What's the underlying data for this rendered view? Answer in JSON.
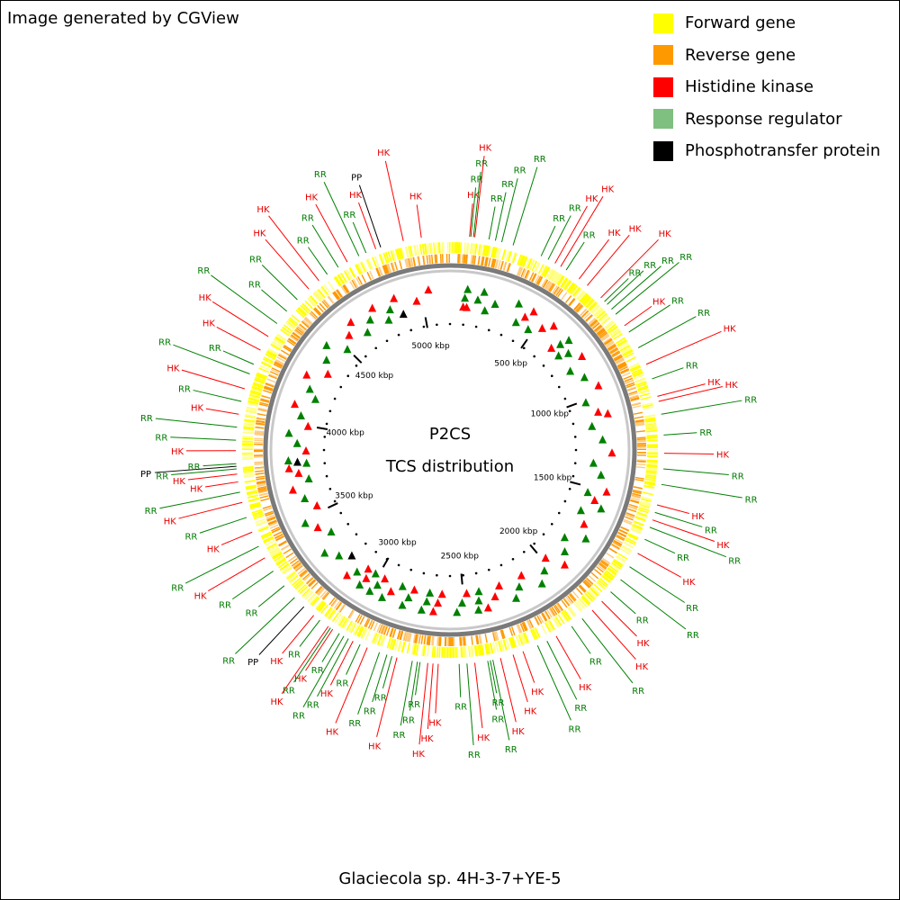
{
  "header": {
    "credit": "Image generated by CGView"
  },
  "legend": [
    {
      "label": "Forward gene",
      "color": "#ffff00"
    },
    {
      "label": "Reverse gene",
      "color": "#ff9900"
    },
    {
      "label": "Histidine kinase",
      "color": "#ff0000"
    },
    {
      "label": "Response regulator",
      "color": "#7fbf7f"
    },
    {
      "label": "Phosphotransfer protein",
      "color": "#000000"
    }
  ],
  "map": {
    "title_line1": "P2CS",
    "title_line2": "TCS distribution",
    "caption": "Glaciecola sp. 4H-3-7+YE-5",
    "ruler_labels": [
      "500 kbp",
      "1000 kbp",
      "1500 kbp",
      "2000 kbp",
      "2500 kbp",
      "3000 kbp",
      "3500 kbp",
      "4000 kbp",
      "4500 kbp",
      "5000 kbp"
    ],
    "tick_positions_kbp": [
      500,
      1000,
      1500,
      2000,
      2500,
      3000,
      3500,
      4000,
      4500,
      5000
    ],
    "genome_length_kbp": 5150,
    "feature_types": {
      "HK": {
        "color": "#ff0000",
        "label_color": "#e60000"
      },
      "RR": {
        "color": "#008000",
        "label_color": "#007a00"
      },
      "PP": {
        "color": "#000000",
        "label_color": "#000000"
      }
    },
    "features": [
      {
        "kbp": 75,
        "type": "HK",
        "label": "HK"
      },
      {
        "kbp": 80,
        "type": "RR",
        "label": "RR"
      },
      {
        "kbp": 90,
        "type": "RR",
        "label": "RR"
      },
      {
        "kbp": 95,
        "type": "HK",
        "label": "HK"
      },
      {
        "kbp": 150,
        "type": "RR",
        "label": "RR"
      },
      {
        "kbp": 175,
        "type": "RR",
        "label": "RR"
      },
      {
        "kbp": 200,
        "type": "RR",
        "label": "RR"
      },
      {
        "kbp": 245,
        "type": "RR",
        "label": "RR"
      },
      {
        "kbp": 360,
        "type": "RR",
        "label": "RR"
      },
      {
        "kbp": 390,
        "type": "RR",
        "label": "RR"
      },
      {
        "kbp": 420,
        "type": "HK",
        "label": "HK"
      },
      {
        "kbp": 445,
        "type": "HK",
        "label": "HK"
      },
      {
        "kbp": 470,
        "type": "RR",
        "label": "RR"
      },
      {
        "kbp": 530,
        "type": "HK",
        "label": "HK"
      },
      {
        "kbp": 570,
        "type": "HK",
        "label": "HK"
      },
      {
        "kbp": 640,
        "type": "HK",
        "label": "HK"
      },
      {
        "kbp": 660,
        "type": "RR",
        "label": "RR"
      },
      {
        "kbp": 675,
        "type": "RR",
        "label": "RR"
      },
      {
        "kbp": 700,
        "type": "RR",
        "label": "RR"
      },
      {
        "kbp": 725,
        "type": "RR",
        "label": "RR"
      },
      {
        "kbp": 780,
        "type": "HK",
        "label": "HK"
      },
      {
        "kbp": 810,
        "type": "RR",
        "label": "RR"
      },
      {
        "kbp": 880,
        "type": "RR",
        "label": "RR"
      },
      {
        "kbp": 950,
        "type": "HK",
        "label": "HK"
      },
      {
        "kbp": 1010,
        "type": "RR",
        "label": "RR"
      },
      {
        "kbp": 1080,
        "type": "HK",
        "label": "HK"
      },
      {
        "kbp": 1100,
        "type": "HK",
        "label": "HK"
      },
      {
        "kbp": 1150,
        "type": "RR",
        "label": "RR"
      },
      {
        "kbp": 1230,
        "type": "RR",
        "label": "RR"
      },
      {
        "kbp": 1300,
        "type": "HK",
        "label": "HK"
      },
      {
        "kbp": 1360,
        "type": "RR",
        "label": "RR"
      },
      {
        "kbp": 1420,
        "type": "RR",
        "label": "RR"
      },
      {
        "kbp": 1500,
        "type": "HK",
        "label": "HK"
      },
      {
        "kbp": 1530,
        "type": "RR",
        "label": "RR"
      },
      {
        "kbp": 1560,
        "type": "HK",
        "label": "HK"
      },
      {
        "kbp": 1590,
        "type": "RR",
        "label": "RR"
      },
      {
        "kbp": 1640,
        "type": "RR",
        "label": "RR"
      },
      {
        "kbp": 1700,
        "type": "HK",
        "label": "HK"
      },
      {
        "kbp": 1760,
        "type": "RR",
        "label": "RR"
      },
      {
        "kbp": 1820,
        "type": "RR",
        "label": "RR"
      },
      {
        "kbp": 1880,
        "type": "RR",
        "label": "RR"
      },
      {
        "kbp": 1930,
        "type": "HK",
        "label": "HK"
      },
      {
        "kbp": 1980,
        "type": "HK",
        "label": "HK"
      },
      {
        "kbp": 2030,
        "type": "RR",
        "label": "RR"
      },
      {
        "kbp": 2080,
        "type": "RR",
        "label": "RR"
      },
      {
        "kbp": 2150,
        "type": "HK",
        "label": "HK"
      },
      {
        "kbp": 2190,
        "type": "RR",
        "label": "RR"
      },
      {
        "kbp": 2230,
        "type": "RR",
        "label": "RR"
      },
      {
        "kbp": 2290,
        "type": "HK",
        "label": "HK"
      },
      {
        "kbp": 2330,
        "type": "HK",
        "label": "HK"
      },
      {
        "kbp": 2380,
        "type": "HK",
        "label": "HK"
      },
      {
        "kbp": 2410,
        "type": "RR",
        "label": "RR"
      },
      {
        "kbp": 2420,
        "type": "RR",
        "label": "RR"
      },
      {
        "kbp": 2430,
        "type": "RR",
        "label": "RR"
      },
      {
        "kbp": 2480,
        "type": "HK",
        "label": "HK"
      },
      {
        "kbp": 2510,
        "type": "RR",
        "label": "RR"
      },
      {
        "kbp": 2540,
        "type": "RR",
        "label": "RR"
      },
      {
        "kbp": 2620,
        "type": "HK",
        "label": "HK"
      },
      {
        "kbp": 2640,
        "type": "HK",
        "label": "HK"
      },
      {
        "kbp": 2660,
        "type": "HK",
        "label": "HK"
      },
      {
        "kbp": 2690,
        "type": "RR",
        "label": "RR"
      },
      {
        "kbp": 2700,
        "type": "RR",
        "label": "RR"
      },
      {
        "kbp": 2720,
        "type": "RR",
        "label": "RR"
      },
      {
        "kbp": 2780,
        "type": "HK",
        "label": "HK"
      },
      {
        "kbp": 2800,
        "type": "RR",
        "label": "RR"
      },
      {
        "kbp": 2820,
        "type": "RR",
        "label": "RR"
      },
      {
        "kbp": 2850,
        "type": "RR",
        "label": "RR"
      },
      {
        "kbp": 2900,
        "type": "HK",
        "label": "HK"
      },
      {
        "kbp": 2930,
        "type": "RR",
        "label": "RR"
      },
      {
        "kbp": 2960,
        "type": "HK",
        "label": "HK"
      },
      {
        "kbp": 2980,
        "type": "RR",
        "label": "RR"
      },
      {
        "kbp": 3000,
        "type": "RR",
        "label": "RR"
      },
      {
        "kbp": 3020,
        "type": "RR",
        "label": "RR"
      },
      {
        "kbp": 3050,
        "type": "HK",
        "label": "HK"
      },
      {
        "kbp": 3060,
        "type": "RR",
        "label": "RR"
      },
      {
        "kbp": 3070,
        "type": "HK",
        "label": "HK"
      },
      {
        "kbp": 3110,
        "type": "RR",
        "label": "RR"
      },
      {
        "kbp": 3140,
        "type": "HK",
        "label": "HK"
      },
      {
        "kbp": 3190,
        "type": "PP",
        "label": "PP"
      },
      {
        "kbp": 3240,
        "type": "RR",
        "label": "RR"
      },
      {
        "kbp": 3300,
        "type": "RR",
        "label": "RR"
      },
      {
        "kbp": 3370,
        "type": "RR",
        "label": "RR"
      },
      {
        "kbp": 3430,
        "type": "HK",
        "label": "HK"
      },
      {
        "kbp": 3480,
        "type": "RR",
        "label": "RR"
      },
      {
        "kbp": 3540,
        "type": "HK",
        "label": "HK"
      },
      {
        "kbp": 3600,
        "type": "RR",
        "label": "RR"
      },
      {
        "kbp": 3660,
        "type": "HK",
        "label": "HK"
      },
      {
        "kbp": 3700,
        "type": "RR",
        "label": "RR"
      },
      {
        "kbp": 3740,
        "type": "HK",
        "label": "HK"
      },
      {
        "kbp": 3770,
        "type": "HK",
        "label": "HK"
      },
      {
        "kbp": 3790,
        "type": "RR",
        "label": "RR"
      },
      {
        "kbp": 3800,
        "type": "PP",
        "label": "PP"
      },
      {
        "kbp": 3810,
        "type": "RR",
        "label": "RR"
      },
      {
        "kbp": 3860,
        "type": "HK",
        "label": "HK"
      },
      {
        "kbp": 3900,
        "type": "RR",
        "label": "RR"
      },
      {
        "kbp": 3950,
        "type": "RR",
        "label": "RR"
      },
      {
        "kbp": 4000,
        "type": "HK",
        "label": "HK"
      },
      {
        "kbp": 4050,
        "type": "RR",
        "label": "RR"
      },
      {
        "kbp": 4100,
        "type": "HK",
        "label": "HK"
      },
      {
        "kbp": 4160,
        "type": "RR",
        "label": "RR"
      },
      {
        "kbp": 4200,
        "type": "RR",
        "label": "RR"
      },
      {
        "kbp": 4260,
        "type": "HK",
        "label": "HK"
      },
      {
        "kbp": 4320,
        "type": "HK",
        "label": "HK"
      },
      {
        "kbp": 4380,
        "type": "RR",
        "label": "RR"
      },
      {
        "kbp": 4440,
        "type": "RR",
        "label": "RR"
      },
      {
        "kbp": 4500,
        "type": "RR",
        "label": "RR"
      },
      {
        "kbp": 4560,
        "type": "HK",
        "label": "HK"
      },
      {
        "kbp": 4610,
        "type": "HK",
        "label": "HK"
      },
      {
        "kbp": 4650,
        "type": "RR",
        "label": "RR"
      },
      {
        "kbp": 4700,
        "type": "RR",
        "label": "RR"
      },
      {
        "kbp": 4740,
        "type": "HK",
        "label": "HK"
      },
      {
        "kbp": 4790,
        "type": "RR",
        "label": "RR"
      },
      {
        "kbp": 4820,
        "type": "RR",
        "label": "RR"
      },
      {
        "kbp": 4860,
        "type": "HK",
        "label": "HK"
      },
      {
        "kbp": 4880,
        "type": "PP",
        "label": "PP"
      },
      {
        "kbp": 4970,
        "type": "HK",
        "label": "HK"
      },
      {
        "kbp": 5040,
        "type": "HK",
        "label": "HK"
      }
    ]
  }
}
